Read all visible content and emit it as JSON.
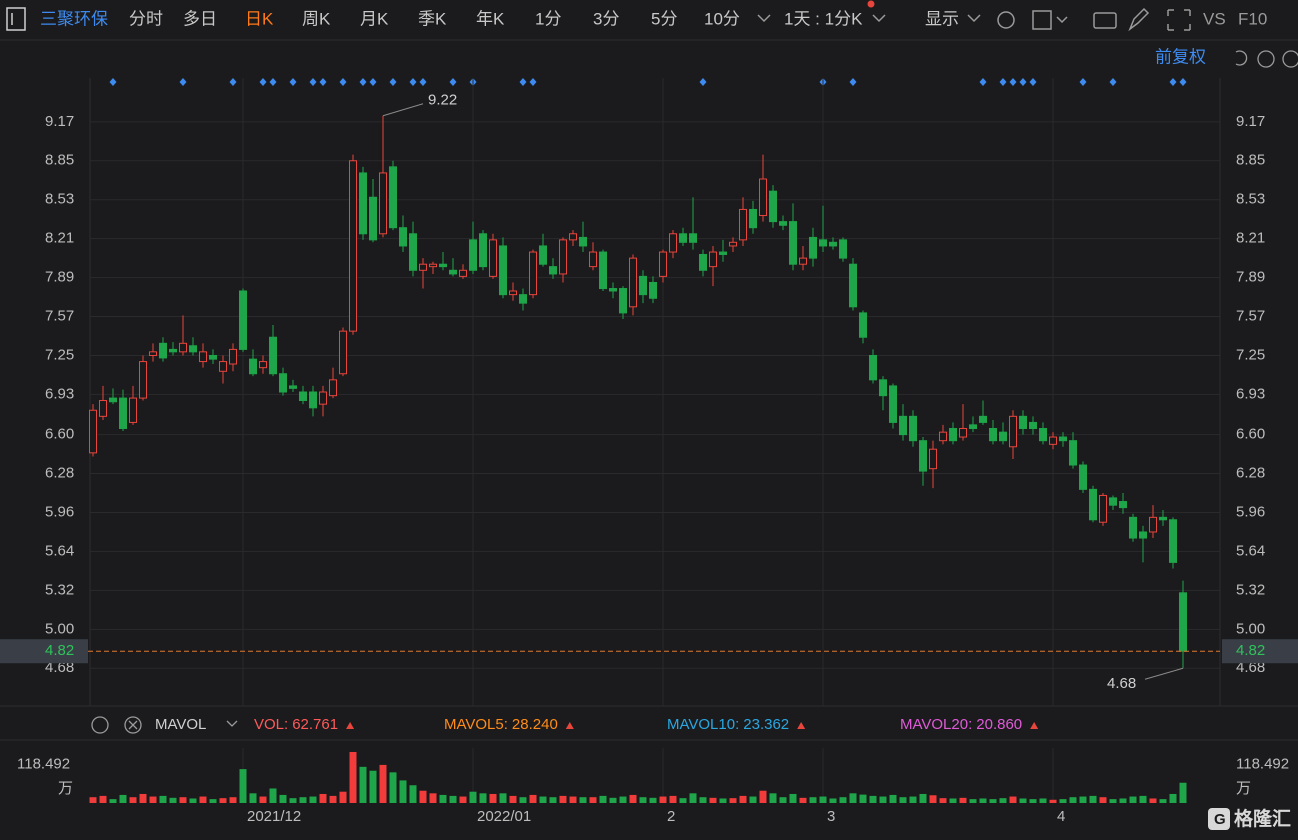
{
  "toolbar": {
    "stock": "三聚环保",
    "tabs": [
      "分时",
      "多日",
      "日K",
      "周K",
      "月K",
      "季K",
      "年K",
      "1分",
      "3分",
      "5分",
      "10分"
    ],
    "active": "日K",
    "period": "1天 : 1分K",
    "display": "显示",
    "compare": "VS",
    "f10": "F10",
    "adjust": "前复权"
  },
  "watermark": "格隆汇",
  "chart_data": [
    {
      "type": "candlestick",
      "categories": [
        null,
        null,
        null,
        null,
        null,
        null,
        null,
        null,
        null,
        null,
        null,
        null,
        null,
        null,
        null,
        "2021/12",
        null,
        null,
        null,
        null,
        null,
        null,
        null,
        null,
        null,
        null,
        null,
        null,
        null,
        null,
        null,
        null,
        null,
        null,
        null,
        null,
        null,
        null,
        "2022/01",
        null,
        null,
        null,
        null,
        null,
        null,
        null,
        null,
        null,
        null,
        null,
        null,
        null,
        null,
        null,
        null,
        null,
        null,
        "2",
        null,
        null,
        null,
        null,
        null,
        null,
        null,
        null,
        null,
        null,
        null,
        null,
        null,
        null,
        null,
        "3",
        null,
        null,
        null,
        null,
        null,
        null,
        null,
        null,
        null,
        null,
        null,
        null,
        null,
        null,
        null,
        null,
        null,
        null,
        null,
        null,
        null,
        null,
        "4",
        null,
        null,
        null,
        null,
        null,
        null,
        null,
        null,
        null,
        null,
        null,
        null,
        null
      ],
      "open": [
        6.45,
        6.75,
        6.9,
        6.9,
        6.7,
        6.9,
        7.25,
        7.35,
        7.3,
        7.28,
        7.33,
        7.2,
        7.25,
        7.12,
        7.18,
        7.78,
        7.22,
        7.15,
        7.4,
        7.1,
        7.0,
        6.95,
        6.95,
        6.85,
        6.92,
        7.1,
        7.45,
        8.75,
        8.55,
        8.25,
        8.8,
        8.3,
        8.25,
        7.95,
        7.98,
        8.0,
        7.95,
        7.9,
        8.2,
        8.25,
        7.9,
        8.15,
        7.75,
        7.75,
        7.75,
        8.15,
        7.98,
        7.92,
        8.2,
        8.22,
        7.98,
        8.1,
        7.8,
        7.8,
        7.65,
        7.9,
        7.85,
        7.9,
        8.1,
        8.25,
        8.25,
        8.08,
        7.98,
        8.1,
        8.15,
        8.2,
        8.45,
        8.4,
        8.6,
        8.35,
        8.35,
        8.0,
        8.22,
        8.2,
        8.18,
        8.2,
        8.0,
        7.6,
        7.25,
        7.05,
        7.0,
        6.75,
        6.75,
        6.55,
        6.32,
        6.55,
        6.65,
        6.58,
        6.68,
        6.75,
        6.65,
        6.62,
        6.5,
        6.75,
        6.7,
        6.65,
        6.52,
        6.58,
        6.55,
        6.35,
        6.15,
        5.88,
        6.08,
        6.05,
        5.92,
        5.8,
        5.8,
        5.92,
        5.9,
        5.3
      ],
      "high": [
        6.85,
        7.0,
        6.98,
        6.97,
        7.0,
        7.25,
        7.35,
        7.4,
        7.36,
        7.58,
        7.4,
        7.35,
        7.3,
        7.25,
        7.35,
        7.8,
        7.3,
        7.25,
        7.5,
        7.15,
        7.05,
        7.0,
        7.0,
        7.0,
        7.15,
        7.48,
        8.9,
        8.8,
        8.7,
        9.22,
        8.85,
        8.4,
        8.35,
        8.05,
        8.02,
        8.1,
        8.05,
        8.0,
        8.35,
        8.28,
        8.25,
        8.22,
        7.85,
        7.8,
        8.12,
        8.25,
        8.05,
        8.22,
        8.28,
        8.35,
        8.18,
        8.12,
        7.85,
        7.82,
        8.08,
        7.95,
        7.9,
        8.12,
        8.28,
        8.3,
        8.55,
        8.12,
        8.15,
        8.2,
        8.22,
        8.55,
        8.52,
        8.9,
        8.65,
        8.4,
        8.5,
        8.15,
        8.3,
        8.48,
        8.22,
        8.22,
        8.05,
        7.62,
        7.3,
        7.08,
        7.02,
        6.85,
        6.8,
        6.58,
        6.55,
        6.68,
        6.7,
        6.85,
        6.75,
        6.88,
        6.72,
        6.7,
        6.8,
        6.8,
        6.75,
        6.7,
        6.62,
        6.62,
        6.62,
        6.38,
        6.18,
        6.12,
        6.1,
        6.12,
        5.95,
        5.85,
        6.02,
        5.98,
        5.92,
        5.4
      ],
      "low": [
        6.42,
        6.72,
        6.85,
        6.63,
        6.68,
        6.88,
        7.2,
        7.2,
        7.25,
        7.25,
        7.25,
        7.15,
        7.18,
        7.02,
        7.12,
        7.28,
        7.08,
        7.1,
        7.08,
        6.92,
        6.95,
        6.85,
        6.75,
        6.75,
        6.9,
        7.08,
        7.42,
        8.2,
        8.18,
        8.22,
        8.28,
        8.1,
        7.9,
        7.8,
        7.92,
        7.95,
        7.9,
        7.88,
        7.92,
        7.95,
        7.88,
        7.72,
        7.7,
        7.62,
        7.72,
        7.98,
        7.88,
        7.85,
        8.15,
        8.1,
        7.95,
        7.78,
        7.72,
        7.55,
        7.58,
        7.68,
        7.68,
        7.85,
        8.05,
        8.15,
        8.12,
        7.9,
        7.82,
        8.02,
        8.1,
        8.15,
        8.25,
        8.35,
        8.3,
        8.28,
        7.95,
        7.95,
        7.98,
        8.1,
        8.12,
        8.02,
        7.62,
        7.35,
        7.02,
        6.8,
        6.65,
        6.55,
        6.5,
        6.18,
        6.16,
        6.52,
        6.52,
        6.55,
        6.62,
        6.68,
        6.52,
        6.52,
        6.4,
        6.6,
        6.6,
        6.52,
        6.48,
        6.5,
        6.32,
        6.12,
        5.88,
        5.85,
        5.98,
        5.95,
        5.72,
        5.55,
        5.75,
        5.85,
        5.5,
        4.68
      ],
      "close": [
        6.8,
        6.88,
        6.87,
        6.65,
        6.9,
        7.2,
        7.28,
        7.23,
        7.28,
        7.35,
        7.28,
        7.28,
        7.22,
        7.2,
        7.3,
        7.3,
        7.1,
        7.2,
        7.1,
        6.95,
        6.98,
        6.88,
        6.82,
        6.95,
        7.05,
        7.45,
        8.85,
        8.25,
        8.2,
        8.75,
        8.3,
        8.15,
        7.95,
        8.0,
        8.0,
        7.98,
        7.92,
        7.95,
        7.95,
        7.98,
        8.2,
        7.75,
        7.78,
        7.68,
        8.1,
        8.0,
        7.92,
        8.2,
        8.25,
        8.15,
        8.1,
        7.8,
        7.78,
        7.6,
        8.05,
        7.75,
        7.72,
        8.1,
        8.25,
        8.18,
        8.18,
        7.95,
        8.1,
        8.08,
        8.18,
        8.45,
        8.3,
        8.7,
        8.35,
        8.32,
        8.0,
        8.05,
        8.05,
        8.15,
        8.15,
        8.05,
        7.65,
        7.4,
        7.05,
        6.92,
        6.7,
        6.6,
        6.55,
        6.3,
        6.48,
        6.62,
        6.55,
        6.65,
        6.65,
        6.7,
        6.55,
        6.55,
        6.75,
        6.65,
        6.65,
        6.55,
        6.58,
        6.55,
        6.35,
        6.15,
        5.9,
        6.1,
        6.02,
        6.0,
        5.75,
        5.75,
        5.92,
        5.9,
        5.55,
        4.82
      ],
      "up_color": "#e8453c",
      "down_color": "#1fa54a",
      "ylim": [
        4.37,
        9.53
      ],
      "yticks": [
        9.17,
        8.85,
        8.53,
        8.21,
        7.89,
        7.57,
        7.25,
        6.93,
        {
          "value": 6.6,
          "label": "6.60"
        },
        6.28,
        5.96,
        5.64,
        5.32,
        {
          "value": 5,
          "label": "5.00"
        },
        4.68
      ],
      "grid": true,
      "last_price": 4.82,
      "high_label": 9.22,
      "low_label": 4.68
    },
    {
      "type": "bar",
      "values": [
        18,
        22,
        12,
        25,
        18,
        28,
        20,
        22,
        16,
        18,
        14,
        20,
        12,
        15,
        18,
        105,
        30,
        20,
        45,
        25,
        15,
        18,
        20,
        28,
        22,
        35,
        158,
        112,
        100,
        118,
        95,
        70,
        55,
        38,
        30,
        25,
        22,
        20,
        35,
        30,
        28,
        30,
        22,
        18,
        25,
        20,
        18,
        22,
        20,
        18,
        18,
        22,
        16,
        20,
        25,
        18,
        16,
        20,
        22,
        15,
        30,
        18,
        16,
        14,
        15,
        22,
        20,
        38,
        30,
        18,
        28,
        16,
        18,
        20,
        14,
        18,
        30,
        26,
        22,
        20,
        25,
        18,
        20,
        28,
        24,
        15,
        14,
        16,
        12,
        14,
        12,
        15,
        20,
        14,
        12,
        14,
        10,
        12,
        18,
        20,
        22,
        18,
        12,
        14,
        20,
        22,
        14,
        12,
        28,
        62.761
      ],
      "ylim": [
        0,
        158
      ],
      "yticks": [
        118.492
      ],
      "unit": "万",
      "indicator": "MAVOL",
      "legend": [
        {
          "name": "VOL:",
          "value": 62.761,
          "color": "#ff5a5a"
        },
        {
          "name": "MAVOL5:",
          "value": 28.24,
          "value_label": "28.240",
          "color": "#ff8c1a"
        },
        {
          "name": "MAVOL10:",
          "value": 23.362,
          "color": "#2aa7e0"
        },
        {
          "name": "MAVOL20:",
          "value": 20.86,
          "value_label": "20.860",
          "color": "#e05ad8"
        }
      ]
    }
  ]
}
